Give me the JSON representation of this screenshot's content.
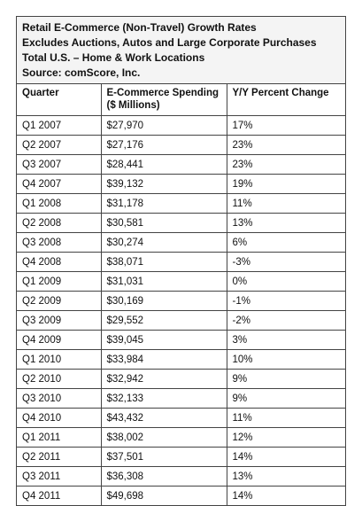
{
  "header": {
    "lines": [
      "Retail E-Commerce (Non-Travel) Growth Rates",
      "Excludes Auctions, Autos and Large Corporate Purchases",
      "Total U.S. – Home & Work Locations",
      "Source: comScore, Inc."
    ]
  },
  "table": {
    "columns": [
      "Quarter",
      "E-Commerce Spending ($ Millions)",
      "Y/Y Percent Change"
    ],
    "rows": [
      [
        "Q1 2007",
        "$27,970",
        "17%"
      ],
      [
        "Q2 2007",
        "$27,176",
        "23%"
      ],
      [
        "Q3 2007",
        "$28,441",
        "23%"
      ],
      [
        "Q4 2007",
        "$39,132",
        "19%"
      ],
      [
        "Q1 2008",
        "$31,178",
        "11%"
      ],
      [
        "Q2 2008",
        "$30,581",
        "13%"
      ],
      [
        "Q3 2008",
        "$30,274",
        "6%"
      ],
      [
        "Q4 2008",
        "$38,071",
        "-3%"
      ],
      [
        "Q1 2009",
        "$31,031",
        "0%"
      ],
      [
        "Q2 2009",
        "$30,169",
        "-1%"
      ],
      [
        "Q3 2009",
        "$29,552",
        "-2%"
      ],
      [
        "Q4 2009",
        "$39,045",
        "3%"
      ],
      [
        "Q1 2010",
        "$33,984",
        "10%"
      ],
      [
        "Q2 2010",
        "$32,942",
        "9%"
      ],
      [
        "Q3 2010",
        "$32,133",
        "9%"
      ],
      [
        "Q4 2010",
        "$43,432",
        "11%"
      ],
      [
        "Q1 2011",
        "$38,002",
        "12%"
      ],
      [
        "Q2 2011",
        "$37,501",
        "14%"
      ],
      [
        "Q3 2011",
        "$36,308",
        "13%"
      ],
      [
        "Q4 2011",
        "$49,698",
        "14%"
      ]
    ]
  }
}
